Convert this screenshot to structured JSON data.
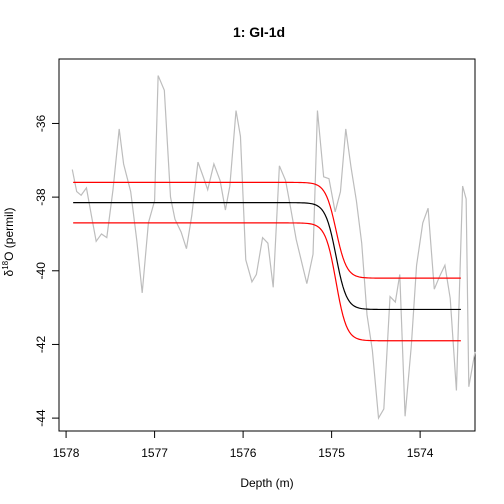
{
  "chart_data": {
    "type": "line",
    "title": "1: GI-1d",
    "xlabel": "Depth (m)",
    "ylabel_prefix": "δ",
    "ylabel_sup": "18",
    "ylabel_rest": "O (permil)",
    "xlim": [
      1578.08,
      1573.38
    ],
    "ylim": [
      -44.35,
      -34.25
    ],
    "x_ticks": [
      1578,
      1577,
      1576,
      1575,
      1574
    ],
    "x_tick_labels": [
      "1578",
      "1577",
      "1576",
      "1575",
      "1574"
    ],
    "y_ticks": [
      -36,
      -38,
      -40,
      -42,
      -44
    ],
    "y_tick_labels": [
      "-36",
      "-38",
      "-40",
      "-42",
      "-44"
    ],
    "series": [
      {
        "role": "observed",
        "color": "#bdbdbd",
        "x": [
          1577.93,
          1577.88,
          1577.83,
          1577.77,
          1577.71,
          1577.66,
          1577.6,
          1577.54,
          1577.47,
          1577.4,
          1577.35,
          1577.27,
          1577.2,
          1577.14,
          1577.07,
          1577.0,
          1576.96,
          1576.89,
          1576.82,
          1576.77,
          1576.7,
          1576.64,
          1576.58,
          1576.51,
          1576.45,
          1576.4,
          1576.33,
          1576.26,
          1576.2,
          1576.15,
          1576.08,
          1576.03,
          1575.97,
          1575.9,
          1575.85,
          1575.78,
          1575.72,
          1575.66,
          1575.59,
          1575.52,
          1575.47,
          1575.4,
          1575.34,
          1575.28,
          1575.21,
          1575.16,
          1575.09,
          1575.03,
          1574.96,
          1574.9,
          1574.84,
          1574.78,
          1574.72,
          1574.66,
          1574.6,
          1574.54,
          1574.47,
          1574.41,
          1574.34,
          1574.28,
          1574.23,
          1574.17,
          1574.1,
          1574.04,
          1573.97,
          1573.91,
          1573.84,
          1573.78,
          1573.72,
          1573.66,
          1573.59,
          1573.52,
          1573.48
        ],
        "y": [
          -37.25,
          -37.85,
          -37.95,
          -37.75,
          -38.55,
          -39.2,
          -39.0,
          -39.1,
          -37.8,
          -36.15,
          -37.1,
          -37.85,
          -39.2,
          -40.6,
          -38.7,
          -38.1,
          -34.7,
          -35.1,
          -38.0,
          -38.6,
          -38.95,
          -39.4,
          -38.5,
          -37.05,
          -37.45,
          -37.8,
          -37.1,
          -37.55,
          -38.35,
          -37.7,
          -35.65,
          -36.35,
          -39.7,
          -40.3,
          -40.1,
          -39.1,
          -39.25,
          -40.45,
          -37.15,
          -37.55,
          -38.2,
          -39.15,
          -39.75,
          -40.35,
          -39.55,
          -35.65,
          -37.45,
          -37.5,
          -38.4,
          -37.85,
          -36.15,
          -37.2,
          -38.1,
          -39.25,
          -41.2,
          -42.15,
          -44.0,
          -43.75,
          -40.7,
          -40.85,
          -40.1,
          -43.95,
          -42.05,
          -39.85,
          -38.7,
          -38.3,
          -40.5,
          -40.15,
          -39.85,
          -40.75,
          -43.25,
          -37.7,
          -38.05
        ],
        "x_tail": [
          1573.45,
          1573.38
        ],
        "y_tail": [
          -43.15,
          -42.2
        ]
      },
      {
        "role": "fit",
        "color": "#000000",
        "transition_midpoint": 1574.95,
        "before": -38.15,
        "after": -41.05
      },
      {
        "role": "upper-band",
        "color": "#ff0000",
        "transition_midpoint": 1574.95,
        "before": -37.6,
        "after": -40.2
      },
      {
        "role": "lower-band",
        "color": "#ff0000",
        "transition_midpoint": 1574.95,
        "before": -38.7,
        "after": -41.9
      }
    ]
  }
}
